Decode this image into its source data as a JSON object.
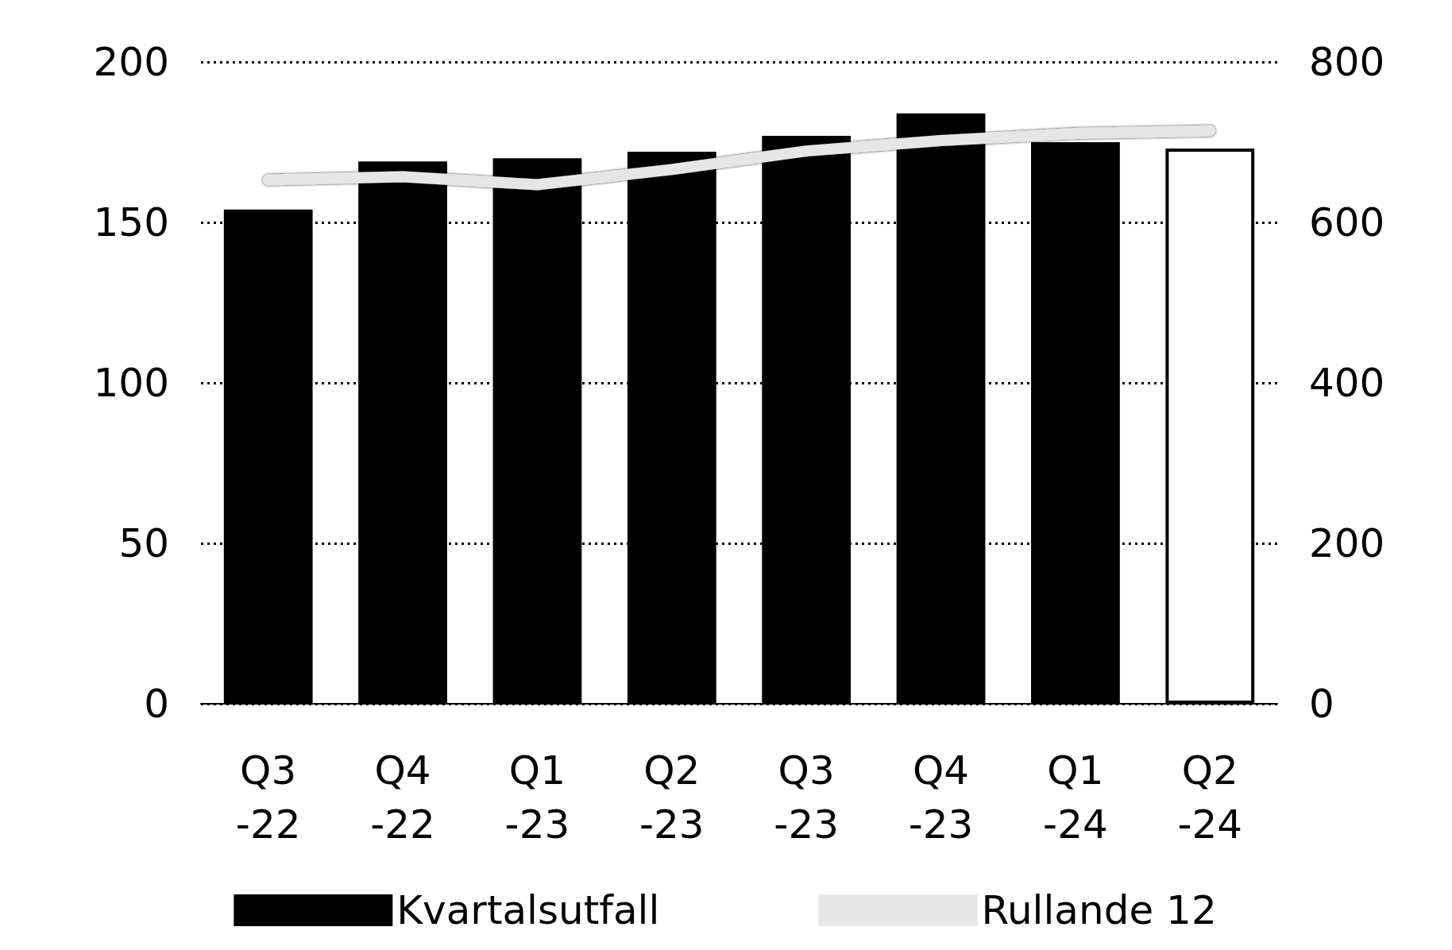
{
  "chart_data": {
    "type": "bar",
    "categories": [
      "Q3\n-22",
      "Q4\n-22",
      "Q1\n-23",
      "Q2\n-23",
      "Q3\n-23",
      "Q4\n-23",
      "Q1\n-24",
      "Q2\n-24"
    ],
    "series": [
      {
        "name": "Kvartalsutfall",
        "color": "#000000",
        "colors": [
          "#000000",
          "#000000",
          "#000000",
          "#000000",
          "#000000",
          "#000000",
          "#000000",
          "#ffffff"
        ],
        "values": [
          154,
          169,
          170,
          172,
          177,
          184,
          175,
          173
        ]
      },
      {
        "name": "Rullande 12",
        "type": "line",
        "axis": "y2",
        "color": "#e6e6e6",
        "values": [
          653,
          657,
          647,
          666,
          689,
          702,
          711,
          714
        ]
      }
    ],
    "ylim": [
      0,
      200
    ],
    "yticks": [
      0,
      50,
      100,
      150,
      200
    ],
    "y2lim": [
      0,
      800
    ],
    "y2ticks": [
      0,
      200,
      400,
      600,
      800
    ],
    "grid": "y",
    "legend": "bottom",
    "line_style": "solid"
  }
}
